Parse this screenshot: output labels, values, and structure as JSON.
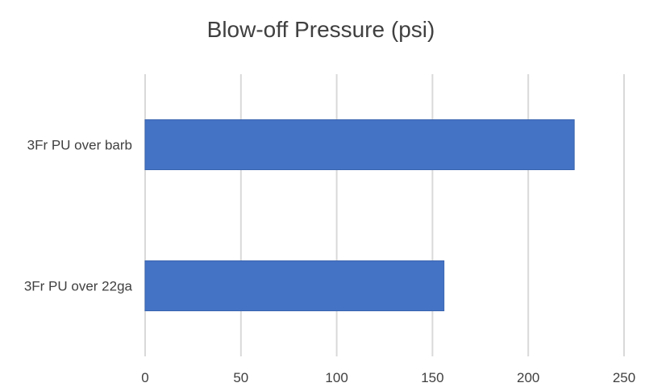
{
  "chart_data": {
    "type": "bar",
    "orientation": "horizontal",
    "title": "Blow-off Pressure (psi)",
    "xlabel": "",
    "ylabel": "",
    "categories": [
      "3Fr PU over barb",
      "3Fr PU over 22ga"
    ],
    "values": [
      224,
      156
    ],
    "xlim": [
      0,
      250
    ],
    "xticks": [
      0,
      50,
      100,
      150,
      200,
      250
    ],
    "grid": "vertical",
    "legend": "none",
    "bar_color": "#4472C4",
    "grid_color": "#D9D9D9"
  }
}
